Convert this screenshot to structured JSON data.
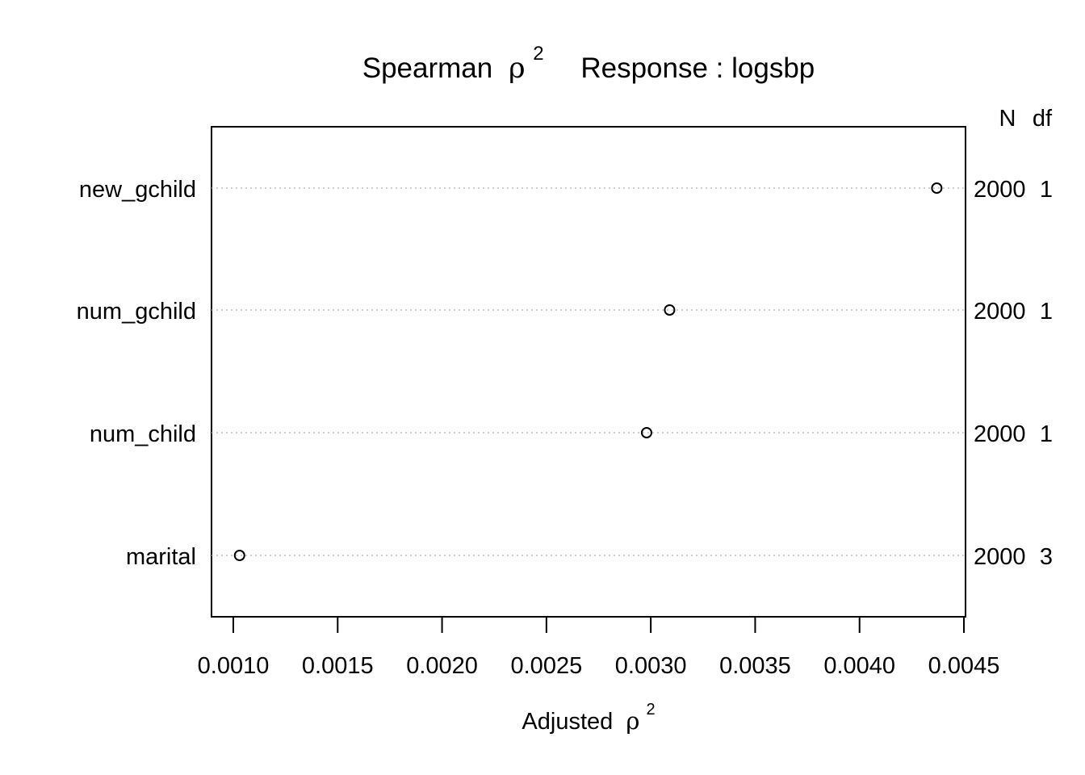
{
  "chart_data": {
    "type": "dot",
    "title": {
      "stat": "Spearman",
      "symbol": "ρ",
      "exponent": "2",
      "response_label": "Response : logsbp"
    },
    "xlabel": {
      "text": "Adjusted",
      "symbol": "ρ",
      "exponent": "2"
    },
    "right_headers": [
      "N",
      "df"
    ],
    "xlim": [
      0.00088,
      0.0045
    ],
    "xticks": [
      "0.0010",
      "0.0015",
      "0.0020",
      "0.0025",
      "0.0030",
      "0.0035",
      "0.0040",
      "0.0045"
    ],
    "grid": "dotted horizontal lines per row",
    "categories": [
      "new_gchild",
      "num_gchild",
      "num_child",
      "marital"
    ],
    "values": [
      0.00437,
      0.00309,
      0.00298,
      0.00103
    ],
    "n": [
      "2000",
      "2000",
      "2000",
      "2000"
    ],
    "df": [
      "1",
      "1",
      "1",
      "3"
    ]
  }
}
